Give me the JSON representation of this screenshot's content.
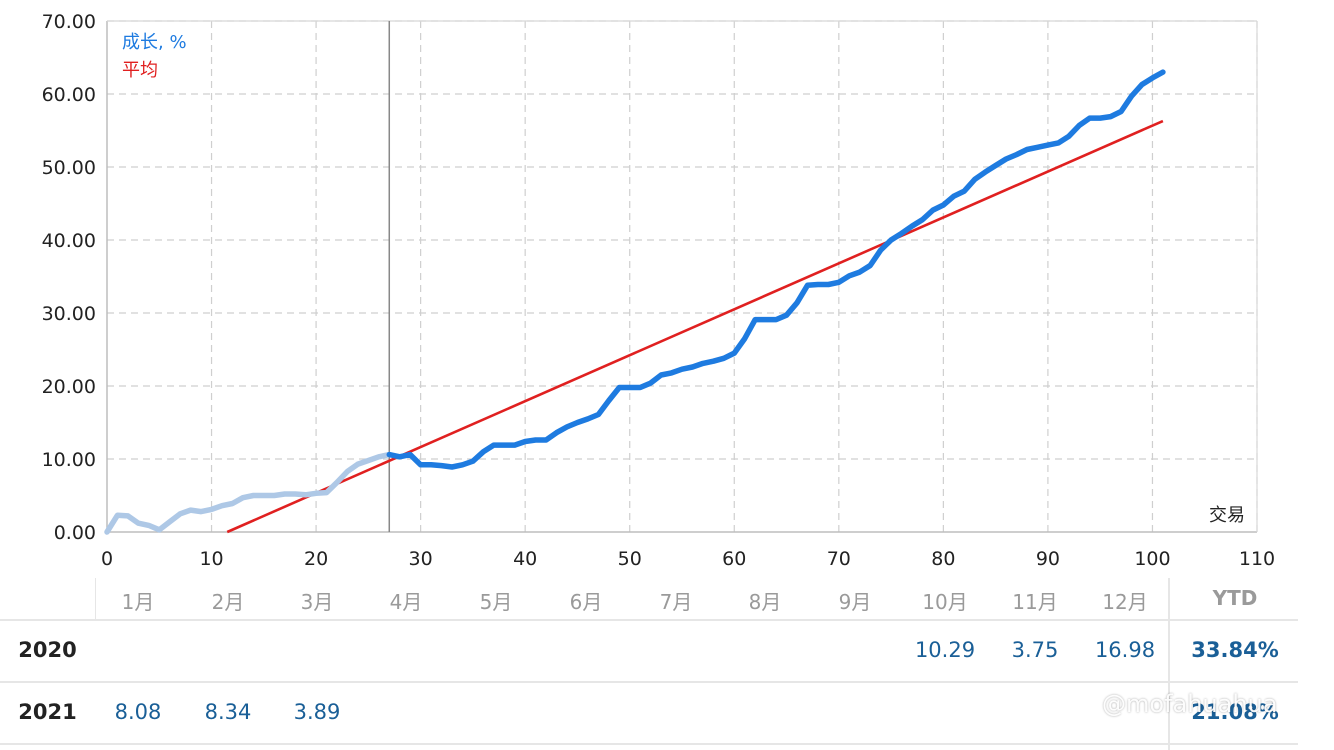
{
  "chart_data": {
    "type": "line",
    "xlabel": "交易",
    "xlim": [
      0,
      110
    ],
    "ylim": [
      0,
      70
    ],
    "x_ticks": [
      "0",
      "10",
      "20",
      "30",
      "40",
      "50",
      "60",
      "70",
      "80",
      "90",
      "100",
      "110"
    ],
    "y_ticks": [
      "0.00",
      "10.00",
      "20.00",
      "30.00",
      "40.00",
      "50.00",
      "60.00",
      "70.00"
    ],
    "grid": true,
    "legend_position": "top-left",
    "marker_x": 27,
    "series": [
      {
        "name": "成长, %",
        "color": "#1e7be0",
        "faded_color": "#aec8e6",
        "faded_until": 27,
        "x": [
          0,
          1,
          2,
          3,
          4,
          5,
          6,
          7,
          8,
          9,
          10,
          11,
          12,
          13,
          14,
          15,
          16,
          17,
          18,
          19,
          20,
          21,
          22,
          23,
          24,
          25,
          26,
          27,
          28,
          29,
          30,
          31,
          32,
          33,
          34,
          35,
          36,
          37,
          38,
          39,
          40,
          41,
          42,
          43,
          44,
          45,
          46,
          47,
          48,
          49,
          50,
          51,
          52,
          53,
          54,
          55,
          56,
          57,
          58,
          59,
          60,
          61,
          62,
          63,
          64,
          65,
          66,
          67,
          68,
          69,
          70,
          71,
          72,
          73,
          74,
          75,
          76,
          77,
          78,
          79,
          80,
          81,
          82,
          83,
          84,
          85,
          86,
          87,
          88,
          89,
          90,
          91,
          92,
          93,
          94,
          95,
          96,
          97,
          98,
          99,
          100,
          101
        ],
        "values": [
          0.0,
          2.3,
          2.2,
          1.2,
          0.9,
          0.3,
          1.4,
          2.5,
          3.0,
          2.8,
          3.1,
          3.6,
          3.9,
          4.7,
          5.0,
          5.0,
          5.0,
          5.2,
          5.2,
          5.1,
          5.3,
          5.4,
          6.8,
          8.3,
          9.3,
          9.8,
          10.3,
          10.6,
          10.3,
          10.6,
          9.2,
          9.2,
          9.1,
          8.9,
          9.2,
          9.7,
          11.0,
          11.9,
          11.9,
          11.9,
          12.4,
          12.6,
          12.6,
          13.6,
          14.4,
          15.0,
          15.5,
          16.1,
          18.0,
          19.8,
          19.8,
          19.8,
          20.4,
          21.5,
          21.8,
          22.3,
          22.6,
          23.1,
          23.4,
          23.8,
          24.5,
          26.5,
          29.1,
          29.1,
          29.1,
          29.7,
          31.4,
          33.8,
          33.9,
          33.9,
          34.2,
          35.1,
          35.6,
          36.5,
          38.6,
          40.0,
          40.9,
          41.9,
          42.8,
          44.1,
          44.8,
          46.0,
          46.7,
          48.3,
          49.3,
          50.2,
          51.1,
          51.7,
          52.4,
          52.7,
          53.0,
          53.3,
          54.2,
          55.7,
          56.7,
          56.7,
          56.9,
          57.6,
          59.7,
          61.3,
          62.2,
          63.0
        ]
      },
      {
        "name": "平均",
        "color": "#e02020",
        "x": [
          11.5,
          101
        ],
        "values": [
          0.0,
          56.3
        ]
      }
    ]
  },
  "table": {
    "headers": [
      "1月",
      "2月",
      "3月",
      "4月",
      "5月",
      "6月",
      "7月",
      "8月",
      "9月",
      "10月",
      "11月",
      "12月"
    ],
    "ytd_label": "YTD",
    "rows": [
      {
        "year": "2020",
        "values": [
          "",
          "",
          "",
          "",
          "",
          "",
          "",
          "",
          "",
          "10.29",
          "3.75",
          "16.98"
        ],
        "ytd": "33.84%"
      },
      {
        "year": "2021",
        "values": [
          "8.08",
          "8.34",
          "3.89",
          "",
          "",
          "",
          "",
          "",
          "",
          "",
          "",
          ""
        ],
        "ytd": "21.08%"
      }
    ]
  },
  "watermark": "@mofahuahua"
}
